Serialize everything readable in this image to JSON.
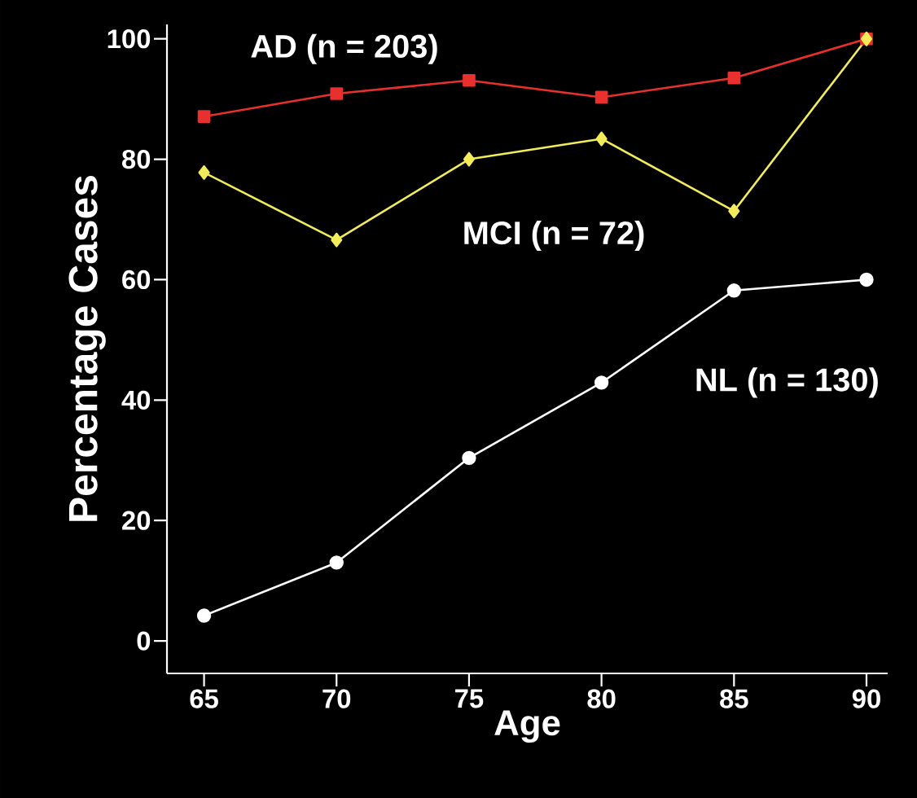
{
  "chart_data": {
    "type": "line",
    "xlabel": "Age",
    "ylabel": "Percentage Cases",
    "x": [
      65,
      70,
      75,
      80,
      85,
      90
    ],
    "series": [
      {
        "name": "AD (n = 203)",
        "color": "#e8312f",
        "marker": "square",
        "values": [
          87.1,
          90.9,
          93.1,
          90.3,
          93.5,
          100
        ]
      },
      {
        "name": "MCI (n = 72)",
        "color": "#f2ec5a",
        "marker": "diamond",
        "values": [
          77.8,
          66.6,
          80,
          83.4,
          71.4,
          100
        ]
      },
      {
        "name": "NL (n = 130)",
        "color": "#ffffff",
        "marker": "circle",
        "values": [
          4.2,
          13,
          30.4,
          42.9,
          58.2,
          60
        ]
      }
    ],
    "xlim": [
      63.6,
      90.8
    ],
    "ylim": [
      -5.4,
      102.4
    ],
    "xticks": [
      65,
      70,
      75,
      80,
      85,
      90
    ],
    "yticks": [
      0,
      20,
      40,
      60,
      80,
      100
    ],
    "grid": false,
    "legend": false,
    "line_style": "solid"
  }
}
